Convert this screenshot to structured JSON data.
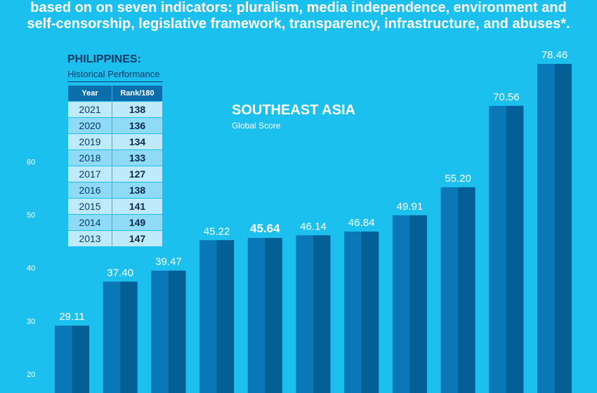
{
  "header": {
    "line1": "based on on seven indicators: pluralism, media independence, environment and",
    "line2": "self-censorship, legislative framework, transparency, infrastructure, and abuses*."
  },
  "philippines": {
    "title": "PHILIPPINES:",
    "subtitle": "Historical Performance",
    "columns": [
      "Year",
      "Rank/180"
    ],
    "rows": [
      {
        "year": "2021",
        "rank": "138"
      },
      {
        "year": "2020",
        "rank": "136"
      },
      {
        "year": "2019",
        "rank": "134"
      },
      {
        "year": "2018",
        "rank": "133"
      },
      {
        "year": "2017",
        "rank": "127"
      },
      {
        "year": "2016",
        "rank": "138"
      },
      {
        "year": "2015",
        "rank": "141"
      },
      {
        "year": "2014",
        "rank": "149"
      },
      {
        "year": "2013",
        "rank": "147"
      }
    ]
  },
  "chart_data": {
    "type": "bar",
    "title": "SOUTHEAST ASIA",
    "subtitle": "Global Score",
    "categories": [
      "",
      "",
      "",
      "",
      "",
      "",
      "",
      "",
      "",
      "",
      ""
    ],
    "values": [
      29.11,
      37.4,
      39.47,
      45.22,
      45.64,
      46.14,
      46.84,
      49.91,
      55.2,
      70.56,
      78.46
    ],
    "value_labels": [
      "29.11",
      "37.40",
      "39.47",
      "45.22",
      "45.64",
      "46.14",
      "46.84",
      "49.91",
      "55.20",
      "70.56",
      "78.46"
    ],
    "highlight_index": 4,
    "yticks": [
      20,
      30,
      40,
      50,
      60
    ],
    "ylim": [
      15,
      80
    ],
    "grid": false,
    "colors": {
      "background": "#1cc0ef",
      "bar_dark": "#045f97",
      "bar_light": "#0a77b6",
      "text": "#ffffff",
      "table_header": "#0b6eac"
    }
  }
}
